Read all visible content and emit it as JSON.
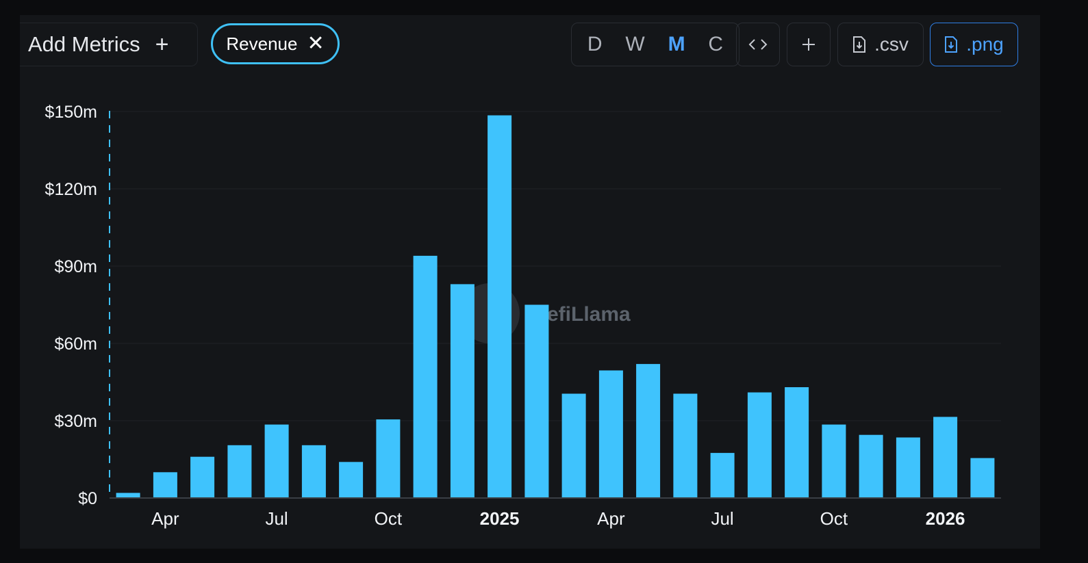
{
  "toolbar": {
    "add_metrics_label": "Add Metrics",
    "add_metrics_plus": "+",
    "metric_chip_label": "Revenue",
    "granularity": [
      {
        "label": "D",
        "active": false
      },
      {
        "label": "W",
        "active": false
      },
      {
        "label": "M",
        "active": true
      },
      {
        "label": "C",
        "active": false
      }
    ],
    "embed_icon": "code-icon",
    "add_icon": "plus-icon",
    "csv_label": ".csv",
    "png_label": ".png"
  },
  "watermark": "efiLlama",
  "colors": {
    "bar": "#3fc3fd",
    "accent": "#4da3ff",
    "chip_border": "#3fc0f5"
  },
  "chart_data": {
    "type": "bar",
    "title": "",
    "xlabel": "",
    "ylabel": "",
    "series": [
      {
        "values": [
          2,
          10,
          16,
          20.5,
          28.5,
          20.5,
          14,
          30.5,
          94,
          83,
          148.5,
          75,
          40.5,
          49.5,
          52,
          40.5,
          17.5,
          41,
          43,
          28.5,
          24.5,
          23.5,
          31.5,
          15.5
        ]
      }
    ],
    "x": [
      "2024-03",
      "2024-04",
      "2024-05",
      "2024-06",
      "2024-07",
      "2024-08",
      "2024-09",
      "2024-10",
      "2024-11",
      "2024-12",
      "2025-01",
      "2025-02",
      "2025-03",
      "2025-04",
      "2025-05",
      "2025-06",
      "2025-07",
      "2025-08",
      "2025-09",
      "2025-10",
      "2025-11",
      "2025-12",
      "2026-01",
      "2026-02"
    ],
    "ylim": [
      0,
      150
    ],
    "y_ticks": [
      {
        "value": 0,
        "label": "$0"
      },
      {
        "value": 30,
        "label": "$30m"
      },
      {
        "value": 60,
        "label": "$60m"
      },
      {
        "value": 90,
        "label": "$90m"
      },
      {
        "value": 120,
        "label": "$120m"
      },
      {
        "value": 150,
        "label": "$150m"
      }
    ],
    "x_ticks": [
      {
        "index": 1,
        "label": "Apr",
        "bold": false
      },
      {
        "index": 4,
        "label": "Jul",
        "bold": false
      },
      {
        "index": 7,
        "label": "Oct",
        "bold": false
      },
      {
        "index": 10,
        "label": "2025",
        "bold": true
      },
      {
        "index": 13,
        "label": "Apr",
        "bold": false
      },
      {
        "index": 16,
        "label": "Jul",
        "bold": false
      },
      {
        "index": 19,
        "label": "Oct",
        "bold": false
      },
      {
        "index": 22,
        "label": "2026",
        "bold": true
      }
    ],
    "grid": true,
    "legend": "none"
  }
}
